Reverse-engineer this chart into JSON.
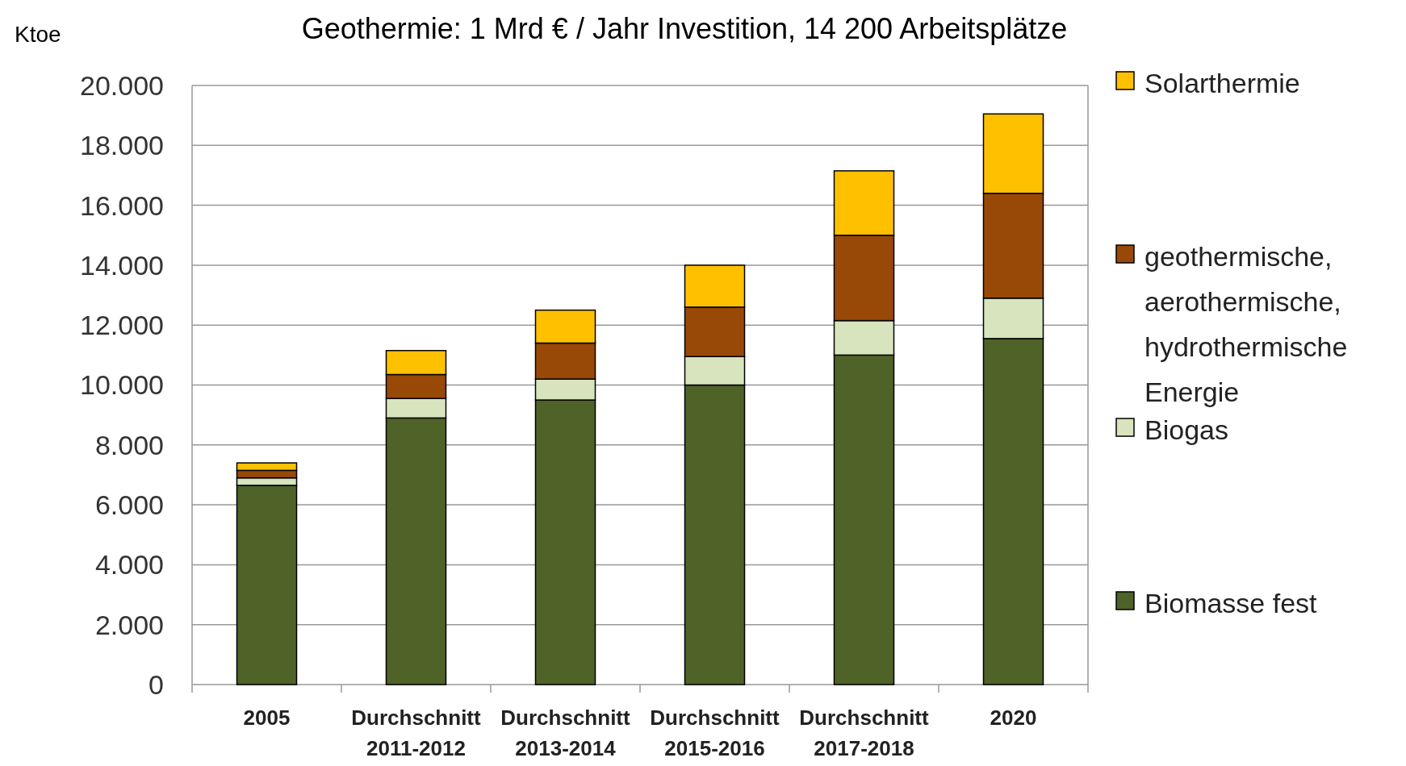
{
  "chart_data": {
    "type": "bar",
    "title": "Geothermie: 1 Mrd € / Jahr Investition, 14 200 Arbeitsplätze",
    "ylabel": "Ktoe",
    "stacked": true,
    "grid": "y",
    "legend": "right",
    "categories": [
      "2005",
      "Durchschnitt 2011-2012",
      "Durchschnitt 2013-2014",
      "Durchschnitt 2015-2016",
      "Durchschnitt 2017-2018",
      "2020"
    ],
    "ylim": [
      0,
      20000
    ],
    "yticks": [
      {
        "value": 0,
        "label": "0"
      },
      {
        "value": 2000,
        "label": "2.000"
      },
      {
        "value": 4000,
        "label": "4.000"
      },
      {
        "value": 6000,
        "label": "6.000"
      },
      {
        "value": 8000,
        "label": "8.000"
      },
      {
        "value": 10000,
        "label": "10.000"
      },
      {
        "value": 12000,
        "label": "12.000"
      },
      {
        "value": 14000,
        "label": "14.000"
      },
      {
        "value": 16000,
        "label": "16.000"
      },
      {
        "value": 18000,
        "label": "18.000"
      },
      {
        "value": 20000,
        "label": "20.000"
      }
    ],
    "series": [
      {
        "name": "Biomasse fest",
        "color": "#4f6228",
        "values": [
          6650,
          8900,
          9500,
          10000,
          11000,
          11550
        ]
      },
      {
        "name": "Biogas",
        "color": "#d7e4bd",
        "values": [
          250,
          650,
          700,
          950,
          1150,
          1350
        ]
      },
      {
        "name": "geothermische, aerothermische, hydrothermische Energie",
        "color": "#984807",
        "values": [
          250,
          800,
          1200,
          1650,
          2850,
          3500
        ]
      },
      {
        "name": "Solarthermie",
        "color": "#ffc000",
        "values": [
          250,
          800,
          1100,
          1400,
          2150,
          2650
        ]
      }
    ]
  }
}
